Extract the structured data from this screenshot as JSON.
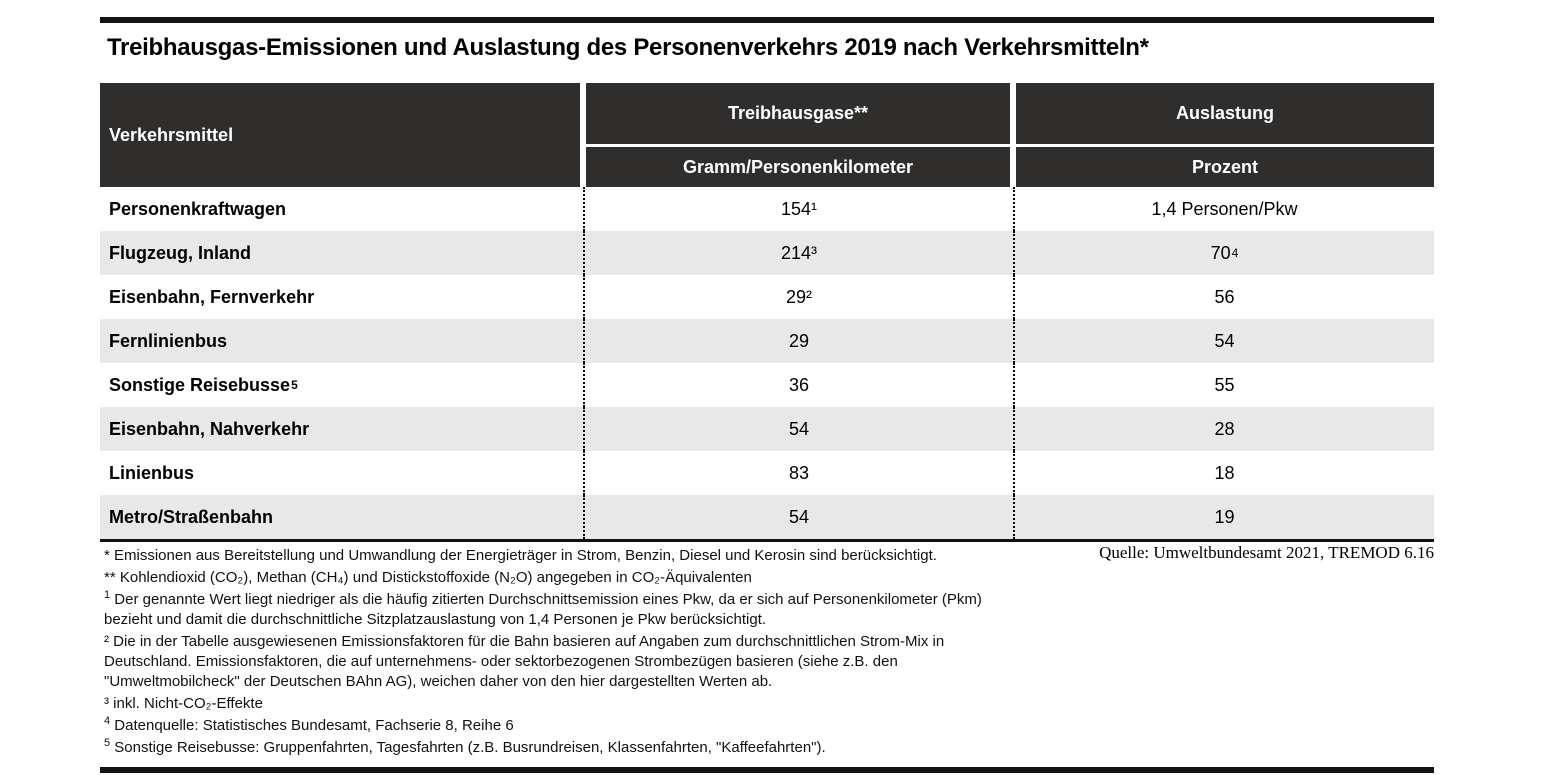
{
  "title": "Treibhausgas-Emissionen und Auslastung des Personenverkehrs 2019 nach Verkehrsmitteln*",
  "colors": {
    "header_bg": "#2f2e2d",
    "row_alt_bg": "#e9e8e8",
    "bar_color": "#141414",
    "text_color": "#000000"
  },
  "table": {
    "col1_header": "Verkehrsmittel",
    "col2_header": "Treibhausgase**",
    "col3_header": "Auslastung",
    "col2_subheader": "Gramm/Personenkilometer",
    "col3_subheader": "Prozent",
    "rows": [
      {
        "verkehrsmittel": "Personenkraftwagen",
        "vm_sup": "",
        "treibhausgase": "154¹",
        "thg_sup": "",
        "auslastung": "1,4 Personen/Pkw",
        "ausl_sup": ""
      },
      {
        "verkehrsmittel": "Flugzeug, Inland",
        "vm_sup": "",
        "treibhausgase": "214³",
        "thg_sup": "",
        "auslastung": "70",
        "ausl_sup": "4"
      },
      {
        "verkehrsmittel": "Eisenbahn, Fernverkehr",
        "vm_sup": "",
        "treibhausgase": "29²",
        "thg_sup": "",
        "auslastung": "56",
        "ausl_sup": ""
      },
      {
        "verkehrsmittel": "Fernlinienbus",
        "vm_sup": "",
        "treibhausgase": "29",
        "thg_sup": "",
        "auslastung": "54",
        "ausl_sup": ""
      },
      {
        "verkehrsmittel": "Sonstige Reisebusse",
        "vm_sup": "5",
        "treibhausgase": "36",
        "thg_sup": "",
        "auslastung": "55",
        "ausl_sup": ""
      },
      {
        "verkehrsmittel": "Eisenbahn, Nahverkehr",
        "vm_sup": "",
        "treibhausgase": "54",
        "thg_sup": "",
        "auslastung": "28",
        "ausl_sup": ""
      },
      {
        "verkehrsmittel": "Linienbus",
        "vm_sup": "",
        "treibhausgase": "83",
        "thg_sup": "",
        "auslastung": "18",
        "ausl_sup": ""
      },
      {
        "verkehrsmittel": "Metro/Straßenbahn",
        "vm_sup": "",
        "treibhausgase": "54",
        "thg_sup": "",
        "auslastung": "19",
        "ausl_sup": ""
      }
    ]
  },
  "source": "Quelle: Umweltbundesamt 2021, TREMOD 6.16",
  "footnotes": [
    {
      "marker": "*",
      "sup": false,
      "text": "Emissionen aus Bereitstellung und Umwandlung der Energieträger in Strom, Benzin, Diesel und Kerosin sind berücksichtigt."
    },
    {
      "marker": "**",
      "sup": false,
      "text": "Kohlendioxid (CO₂), Methan (CH₄) und Distickstoffoxide (N₂O) angegeben in CO₂-Äquivalenten"
    },
    {
      "marker": "1",
      "sup": true,
      "text": "Der genannte Wert liegt niedriger als die häufig zitierten Durchschnittsemission eines Pkw, da er sich auf Personenkilometer (Pkm)\nbezieht und damit die durchschnittliche Sitzplatzauslastung von 1,4 Personen je Pkw berücksichtigt."
    },
    {
      "marker": "²",
      "sup": false,
      "text": "Die in der Tabelle ausgewiesenen Emissionsfaktoren für die Bahn basieren auf Angaben zum durchschnittlichen Strom-Mix in\nDeutschland. Emissionsfaktoren, die auf unternehmens- oder sektorbezogenen Strombezügen basieren (siehe z.B. den\n\"Umweltmobilcheck\" der Deutschen BAhn AG), weichen daher von den hier dargestellten Werten ab."
    },
    {
      "marker": "³",
      "sup": false,
      "text": "inkl. Nicht-CO₂-Effekte"
    },
    {
      "marker": "4",
      "sup": true,
      "text": "Datenquelle: Statistisches Bundesamt, Fachserie 8, Reihe 6"
    },
    {
      "marker": "5",
      "sup": true,
      "text": "Sonstige Reisebusse: Gruppenfahrten, Tagesfahrten (z.B. Busrundreisen, Klassenfahrten, \"Kaffeefahrten\")."
    }
  ],
  "chart_data": {
    "type": "table",
    "title": "Treibhausgas-Emissionen und Auslastung des Personenverkehrs 2019 nach Verkehrsmitteln*",
    "columns": [
      "Verkehrsmittel",
      "Treibhausgase** (Gramm/Personenkilometer)",
      "Auslastung (Prozent)"
    ],
    "rows": [
      [
        "Personenkraftwagen",
        "154¹",
        "1,4 Personen/Pkw"
      ],
      [
        "Flugzeug, Inland",
        "214³",
        "70⁴"
      ],
      [
        "Eisenbahn, Fernverkehr",
        "29²",
        "56"
      ],
      [
        "Fernlinienbus",
        "29",
        "54"
      ],
      [
        "Sonstige Reisebusse⁵",
        "36",
        "55"
      ],
      [
        "Eisenbahn, Nahverkehr",
        "54",
        "28"
      ],
      [
        "Linienbus",
        "83",
        "18"
      ],
      [
        "Metro/Straßenbahn",
        "54",
        "19"
      ]
    ],
    "source": "Quelle: Umweltbundesamt 2021, TREMOD 6.16"
  }
}
